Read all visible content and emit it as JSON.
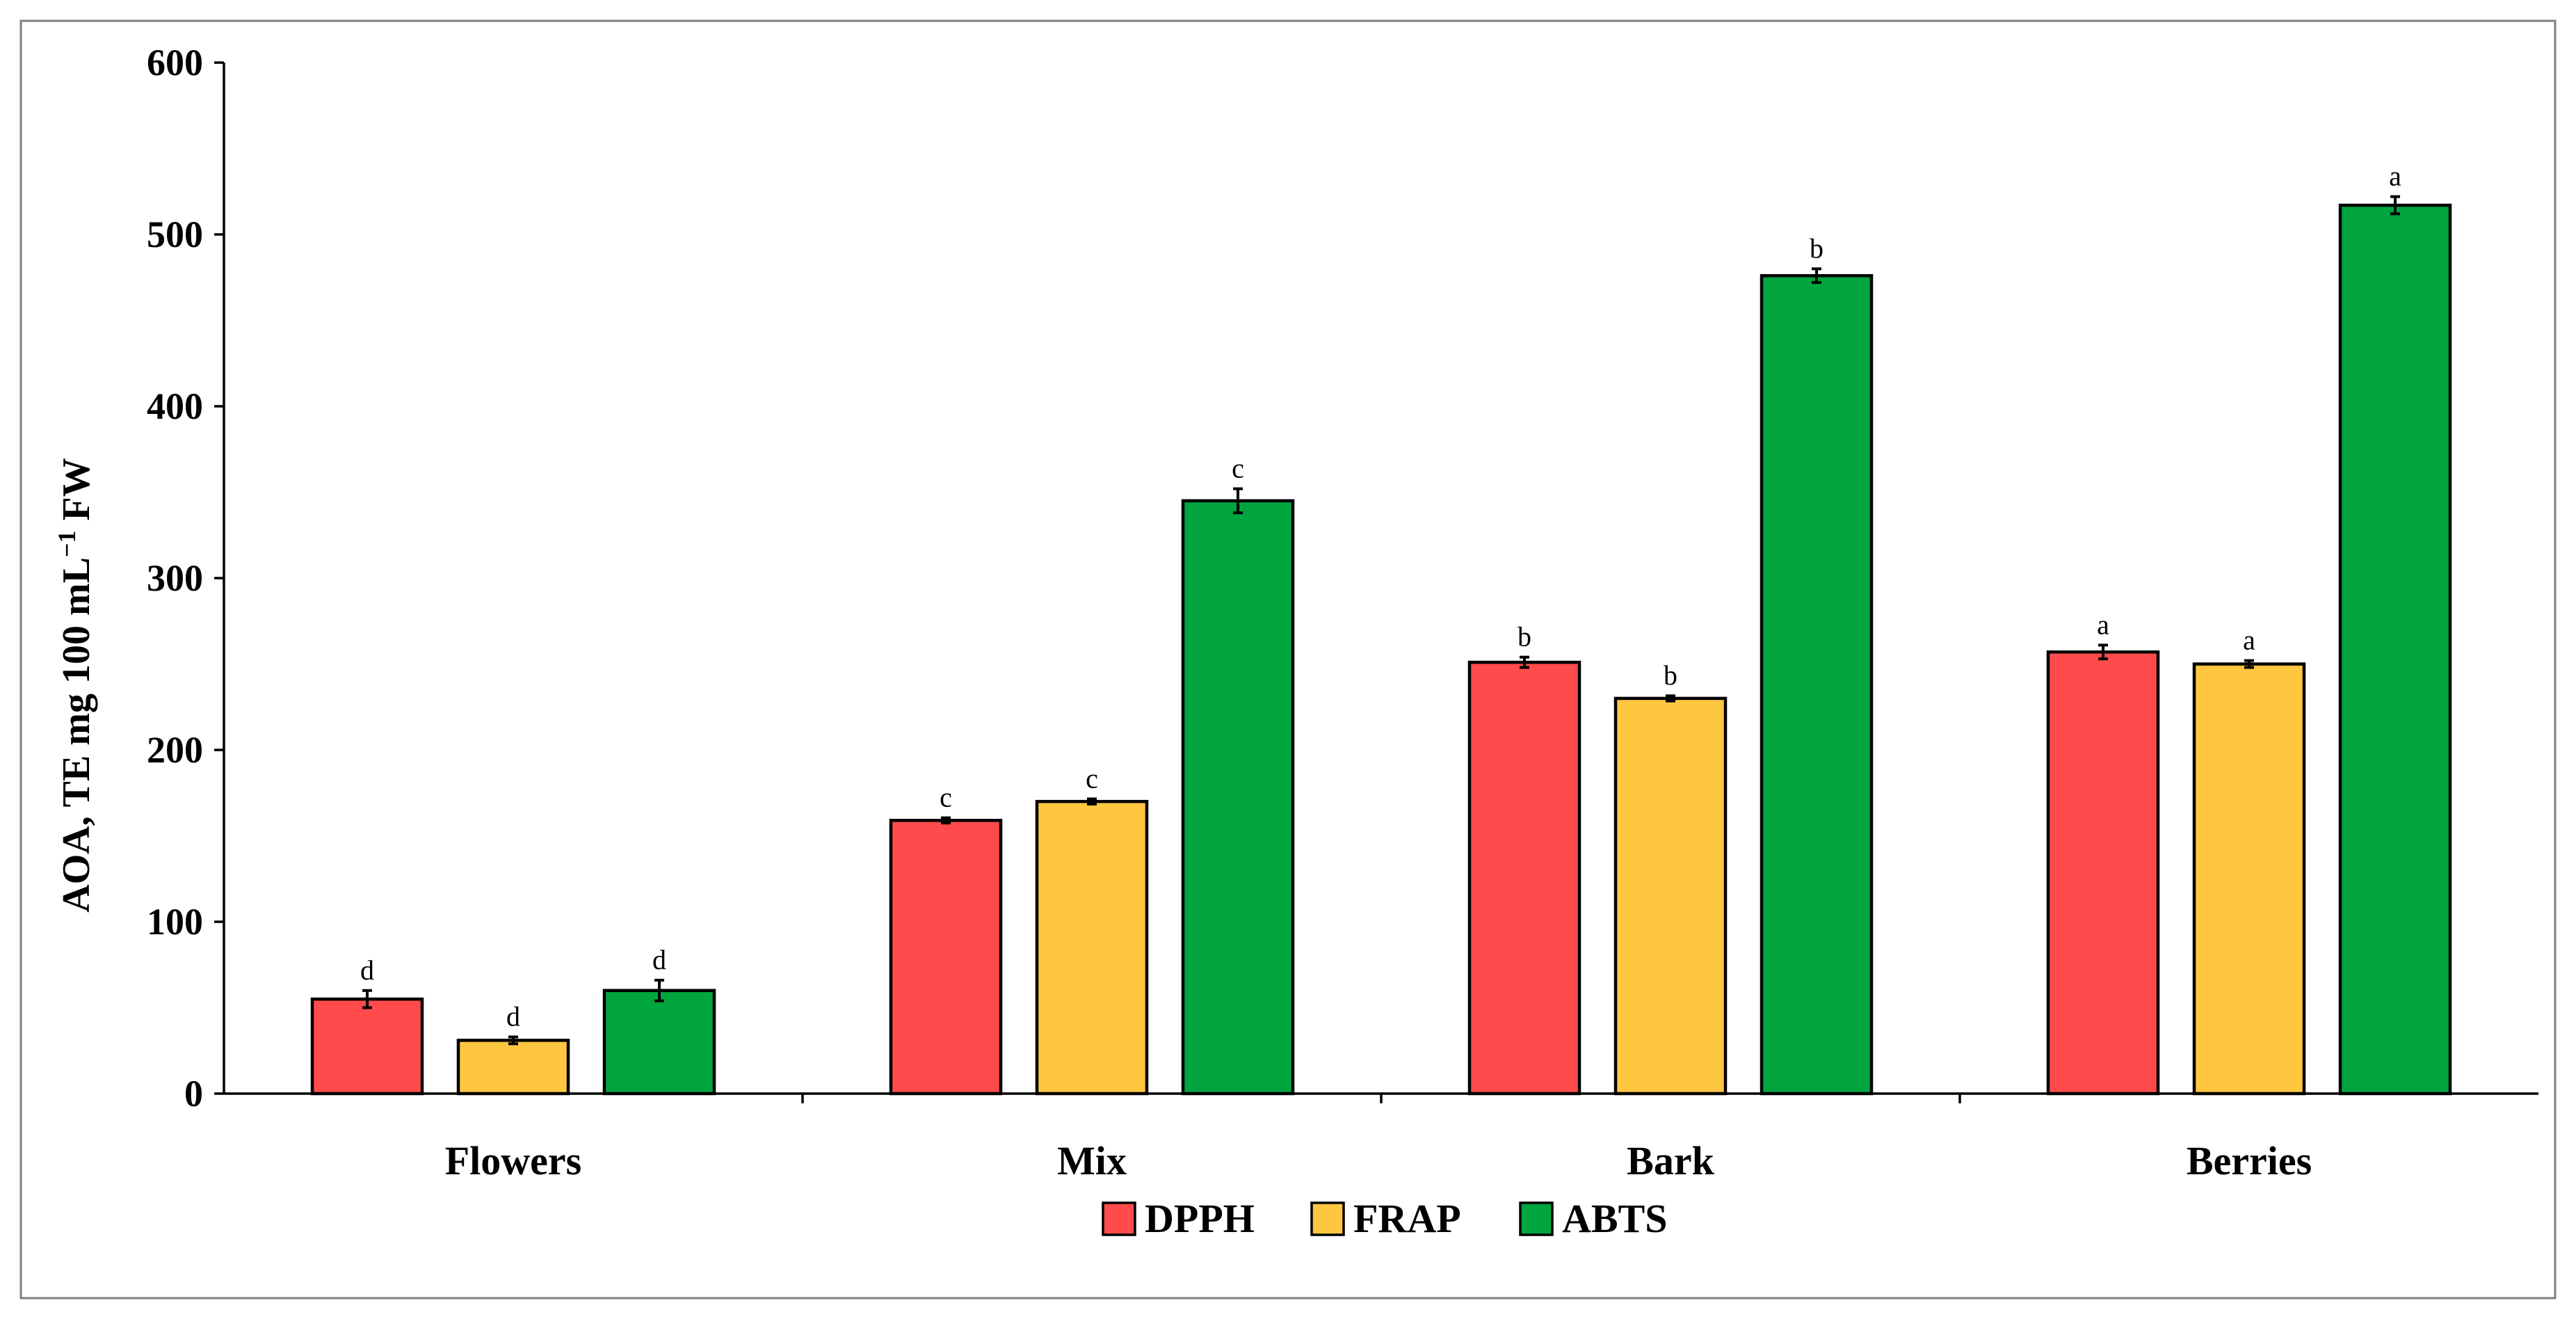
{
  "chart_data": {
    "type": "bar",
    "title": "",
    "ylabel": "AOA, TE mg 100 mL",
    "ylabel_sup": "−1",
    "ylabel_suffix": " FW",
    "xlabel": "",
    "ylim": [
      0,
      600
    ],
    "yticks": [
      "0",
      "100",
      "200",
      "300",
      "400",
      "500",
      "600"
    ],
    "categories": [
      "Flowers",
      "Mix",
      "Bark",
      "Berries"
    ],
    "legend_position": "bottom-center",
    "series": [
      {
        "name": "DPPH",
        "color": "#ff4b4b",
        "values": [
          55,
          159,
          251,
          257
        ],
        "errors": [
          5,
          1.5,
          3,
          4
        ],
        "letters": [
          "d",
          "c",
          "b",
          "a"
        ]
      },
      {
        "name": "FRAP",
        "color": "#ffc73f",
        "values": [
          31,
          170,
          230,
          250
        ],
        "errors": [
          2,
          1.5,
          1.5,
          2
        ],
        "letters": [
          "d",
          "c",
          "b",
          "a"
        ]
      },
      {
        "name": "ABTS",
        "color": "#00a53f",
        "values": [
          60,
          345,
          476,
          517
        ],
        "errors": [
          6,
          7,
          4,
          5
        ],
        "letters": [
          "d",
          "c",
          "b",
          "a"
        ]
      }
    ]
  }
}
